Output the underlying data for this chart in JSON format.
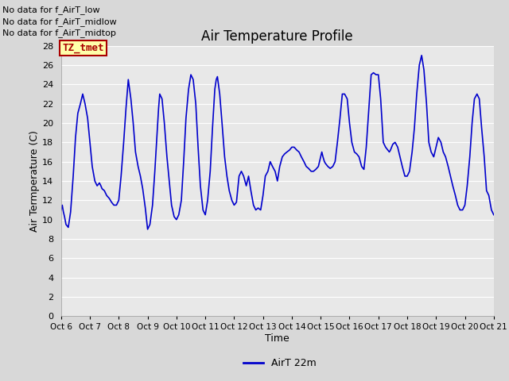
{
  "title": "Air Temperature Profile",
  "xlabel": "Time",
  "ylabel": "Air Termperature (C)",
  "legend_label": "AirT 22m",
  "ylim": [
    0,
    28
  ],
  "yticks": [
    0,
    2,
    4,
    6,
    8,
    10,
    12,
    14,
    16,
    18,
    20,
    22,
    24,
    26,
    28
  ],
  "line_color": "#0000cc",
  "line_width": 1.2,
  "fig_bg_color": "#d8d8d8",
  "plot_bg_color": "#e8e8e8",
  "grid_color": "#ffffff",
  "annotations": [
    "No data for f_AirT_low",
    "No data for f_AirT_midlow",
    "No data for f_AirT_midtop"
  ],
  "legend_box_color": "#ffffaa",
  "legend_box_edge": "#aa0000",
  "legend_text_color": "#aa0000",
  "legend_box_label": "TZ_tmet",
  "x_tick_labels": [
    "Oct 6",
    "Oct 7",
    "Oct 8",
    "Oct 9",
    "Oct 10",
    "Oct 11",
    "Oct 12",
    "Oct 13",
    "Oct 14",
    "Oct 15",
    "Oct 16",
    "Oct 17",
    "Oct 18",
    "Oct 19",
    "Oct 20",
    "Oct 21"
  ],
  "time_data": [
    6.0,
    6.04,
    6.08,
    6.12,
    6.17,
    6.25,
    6.33,
    6.42,
    6.5,
    6.58,
    6.67,
    6.75,
    6.83,
    6.92,
    7.0,
    7.08,
    7.17,
    7.25,
    7.33,
    7.38,
    7.42,
    7.5,
    7.58,
    7.67,
    7.75,
    7.83,
    7.92,
    8.0,
    8.08,
    8.17,
    8.25,
    8.29,
    8.33,
    8.42,
    8.5,
    8.58,
    8.67,
    8.75,
    8.83,
    8.92,
    9.0,
    9.08,
    9.17,
    9.25,
    9.33,
    9.38,
    9.42,
    9.5,
    9.58,
    9.67,
    9.75,
    9.83,
    9.92,
    10.0,
    10.08,
    10.17,
    10.25,
    10.33,
    10.42,
    10.5,
    10.58,
    10.67,
    10.75,
    10.83,
    10.92,
    11.0,
    11.08,
    11.17,
    11.25,
    11.33,
    11.38,
    11.42,
    11.5,
    11.58,
    11.67,
    11.75,
    11.83,
    11.92,
    12.0,
    12.08,
    12.17,
    12.25,
    12.33,
    12.42,
    12.5,
    12.58,
    12.67,
    12.75,
    12.83,
    12.92,
    13.0,
    13.08,
    13.17,
    13.25,
    13.33,
    13.42,
    13.5,
    13.58,
    13.67,
    13.75,
    13.83,
    13.92,
    14.0,
    14.08,
    14.17,
    14.25,
    14.33,
    14.42,
    14.5,
    14.58,
    14.67,
    14.75,
    14.83,
    14.92,
    15.0,
    15.04,
    15.08,
    15.13,
    15.17,
    15.25,
    15.33,
    15.42,
    15.5,
    15.58,
    15.67,
    15.75,
    15.83,
    15.92,
    16.0,
    16.08,
    16.17,
    16.25,
    16.33,
    16.42,
    16.5,
    16.58,
    16.67,
    16.75,
    16.83,
    16.92,
    17.0,
    17.08,
    17.17,
    17.25,
    17.33,
    17.38,
    17.42,
    17.5,
    17.58,
    17.67,
    17.75,
    17.83,
    17.92,
    18.0,
    18.08,
    18.17,
    18.25,
    18.33,
    18.42,
    18.5,
    18.58,
    18.67,
    18.75,
    18.83,
    18.92,
    19.0,
    19.08,
    19.17,
    19.25,
    19.33,
    19.42,
    19.5,
    19.58,
    19.67,
    19.75,
    19.83,
    19.92,
    20.0,
    20.08,
    20.17,
    20.25,
    20.33,
    20.42,
    20.5,
    20.58,
    20.67,
    20.75,
    20.83,
    20.92,
    21.0
  ],
  "temp_data": [
    11.0,
    11.5,
    10.8,
    10.3,
    9.5,
    9.2,
    10.8,
    14.5,
    18.5,
    21.0,
    22.0,
    23.0,
    22.0,
    20.5,
    18.0,
    15.5,
    14.0,
    13.5,
    13.8,
    13.5,
    13.2,
    13.0,
    12.5,
    12.2,
    11.8,
    11.5,
    11.5,
    12.0,
    14.5,
    18.0,
    21.5,
    23.0,
    24.5,
    22.5,
    20.0,
    17.0,
    15.5,
    14.5,
    13.2,
    11.2,
    9.0,
    9.5,
    11.5,
    15.0,
    19.0,
    21.5,
    23.0,
    22.5,
    20.0,
    16.5,
    14.0,
    11.5,
    10.3,
    10.0,
    10.5,
    12.0,
    16.0,
    20.5,
    23.5,
    25.0,
    24.5,
    22.0,
    17.5,
    13.5,
    11.0,
    10.5,
    12.0,
    15.0,
    19.5,
    23.5,
    24.5,
    24.8,
    23.0,
    20.0,
    16.5,
    14.5,
    13.0,
    12.0,
    11.5,
    11.8,
    14.5,
    15.0,
    14.5,
    13.5,
    14.5,
    13.0,
    11.5,
    11.0,
    11.2,
    11.0,
    12.5,
    14.5,
    15.0,
    16.0,
    15.5,
    15.0,
    14.0,
    15.5,
    16.5,
    16.8,
    17.0,
    17.2,
    17.5,
    17.5,
    17.2,
    17.0,
    16.5,
    16.0,
    15.5,
    15.3,
    15.0,
    15.0,
    15.2,
    15.5,
    16.5,
    17.0,
    16.5,
    16.0,
    15.8,
    15.5,
    15.3,
    15.5,
    16.0,
    18.0,
    20.5,
    23.0,
    23.0,
    22.5,
    20.0,
    18.0,
    17.0,
    16.8,
    16.5,
    15.5,
    15.2,
    17.5,
    21.5,
    25.0,
    25.2,
    25.0,
    25.0,
    22.5,
    18.0,
    17.5,
    17.2,
    17.0,
    17.2,
    17.8,
    18.0,
    17.5,
    16.5,
    15.5,
    14.5,
    14.5,
    15.0,
    17.0,
    19.5,
    23.0,
    26.0,
    27.0,
    25.5,
    22.0,
    18.0,
    17.0,
    16.5,
    17.5,
    18.5,
    18.0,
    17.0,
    16.5,
    15.5,
    14.5,
    13.5,
    12.5,
    11.5,
    11.0,
    11.0,
    11.5,
    13.5,
    16.5,
    20.0,
    22.5,
    23.0,
    22.5,
    19.5,
    16.5,
    13.0,
    12.5,
    11.0,
    10.5
  ]
}
